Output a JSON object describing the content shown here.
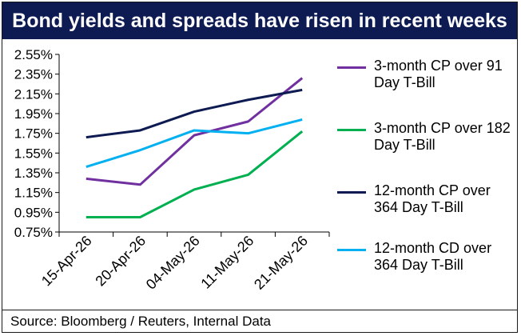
{
  "title": "Bond yields and spreads have risen in recent weeks",
  "source": "Source: Bloomberg / Reuters, Internal Data",
  "chart_data": {
    "type": "line",
    "categories": [
      "15-Apr-26",
      "20-Apr-26",
      "04-May-26",
      "11-May-26",
      "21-May-26"
    ],
    "ylim": [
      0.75,
      2.55
    ],
    "yticks": [
      "2.55%",
      "2.35%",
      "2.15%",
      "1.95%",
      "1.75%",
      "1.55%",
      "1.35%",
      "1.15%",
      "0.95%",
      "0.75%"
    ],
    "ytick_values": [
      2.55,
      2.35,
      2.15,
      1.95,
      1.75,
      1.55,
      1.35,
      1.15,
      0.95,
      0.75
    ],
    "grid": false,
    "legend_position": "right",
    "series": [
      {
        "name": "3-month CP over 91 Day T-Bill",
        "color": "#7030a0",
        "values": [
          1.29,
          1.23,
          1.73,
          1.87,
          2.31
        ]
      },
      {
        "name": "3-month CP over 182 Day T-Bill",
        "color": "#00b050",
        "values": [
          0.9,
          0.9,
          1.18,
          1.33,
          1.77
        ]
      },
      {
        "name": "12-month CP over 364 Day T-Bill",
        "color": "#0d1b52",
        "values": [
          1.71,
          1.78,
          1.97,
          2.09,
          2.19
        ]
      },
      {
        "name": "12-month CD over 364 Day T-Bill",
        "color": "#00b0f0",
        "values": [
          1.41,
          1.58,
          1.78,
          1.75,
          1.89
        ]
      }
    ]
  }
}
